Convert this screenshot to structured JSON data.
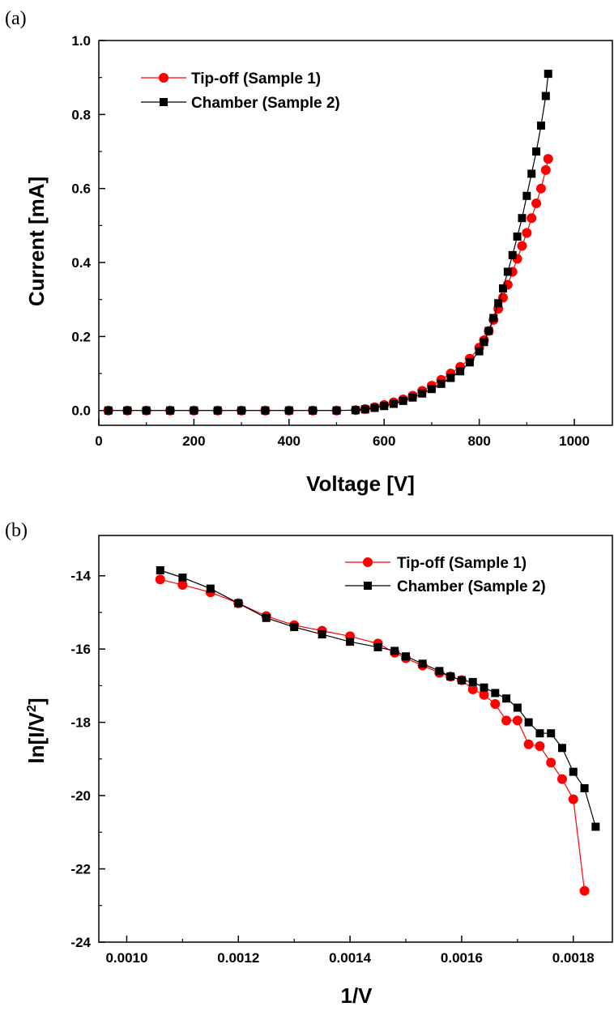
{
  "chart_data": [
    {
      "type": "scatter",
      "panel_label": "(a)",
      "xlabel": "Voltage [V]",
      "ylabel": "Current [mA]",
      "xlim": [
        0,
        1080
      ],
      "ylim": [
        -0.04,
        1.0
      ],
      "xticks": [
        0,
        200,
        400,
        600,
        800,
        1000
      ],
      "xtick_labels": [
        "0",
        "200",
        "400",
        "600",
        "800",
        "1000"
      ],
      "yticks": [
        0.0,
        0.2,
        0.4,
        0.6,
        0.8,
        1.0
      ],
      "ytick_labels": [
        "0.0",
        "0.2",
        "0.4",
        "0.6",
        "0.8",
        "1.0"
      ],
      "legend_position": "top-left",
      "series": [
        {
          "name": "Tip-off (Sample 1)",
          "color": "#ff0000",
          "marker": "circle",
          "x": [
            20,
            60,
            100,
            150,
            200,
            250,
            300,
            350,
            400,
            450,
            500,
            540,
            560,
            580,
            600,
            620,
            640,
            660,
            680,
            700,
            720,
            740,
            760,
            780,
            800,
            810,
            820,
            830,
            840,
            850,
            860,
            870,
            880,
            890,
            900,
            910,
            920,
            930,
            940,
            945
          ],
          "y": [
            0.0,
            0.0,
            0.0,
            0.0,
            0.0,
            0.0,
            0.0,
            0.0,
            0.0,
            0.0,
            0.0,
            0.001,
            0.004,
            0.009,
            0.015,
            0.022,
            0.03,
            0.04,
            0.053,
            0.067,
            0.083,
            0.1,
            0.118,
            0.14,
            0.17,
            0.19,
            0.215,
            0.245,
            0.275,
            0.305,
            0.34,
            0.375,
            0.41,
            0.445,
            0.48,
            0.52,
            0.56,
            0.6,
            0.65,
            0.68
          ]
        },
        {
          "name": "Chamber (Sample 2)",
          "color": "#000000",
          "marker": "square",
          "x": [
            20,
            60,
            100,
            150,
            200,
            250,
            300,
            350,
            400,
            450,
            500,
            540,
            560,
            580,
            600,
            620,
            640,
            660,
            680,
            700,
            720,
            740,
            760,
            780,
            800,
            810,
            820,
            830,
            840,
            850,
            860,
            870,
            880,
            890,
            900,
            910,
            920,
            930,
            940,
            945
          ],
          "y": [
            0.0,
            0.0,
            0.0,
            0.0,
            0.0,
            0.0,
            0.0,
            0.0,
            0.0,
            0.0,
            0.0,
            0.001,
            0.003,
            0.007,
            0.012,
            0.018,
            0.026,
            0.035,
            0.046,
            0.058,
            0.072,
            0.088,
            0.106,
            0.13,
            0.16,
            0.185,
            0.215,
            0.25,
            0.29,
            0.33,
            0.375,
            0.42,
            0.47,
            0.52,
            0.58,
            0.64,
            0.7,
            0.77,
            0.85,
            0.91
          ]
        }
      ]
    },
    {
      "type": "scatter",
      "panel_label": "(b)",
      "xlabel": "1/V",
      "ylabel": "ln[I/V",
      "ylabel_superscript": "2",
      "ylabel_suffix": "]",
      "xlim": [
        0.00095,
        0.00187
      ],
      "ylim": [
        -24,
        -12.9
      ],
      "xticks": [
        0.001,
        0.0012,
        0.0014,
        0.0016,
        0.0018
      ],
      "xtick_labels": [
        "0.0010",
        "0.0012",
        "0.0014",
        "0.0016",
        "0.0018"
      ],
      "yticks": [
        -24,
        -22,
        -20,
        -18,
        -16,
        -14
      ],
      "ytick_labels": [
        "-24",
        "-22",
        "-20",
        "-18",
        "-16",
        "-14"
      ],
      "legend_position": "top-right",
      "series": [
        {
          "name": "Tip-off (Sample 1)",
          "color": "#ff0000",
          "marker": "circle",
          "x": [
            0.00106,
            0.0011,
            0.00115,
            0.0012,
            0.00125,
            0.0013,
            0.00135,
            0.0014,
            0.00145,
            0.00148,
            0.0015,
            0.00153,
            0.00156,
            0.00158,
            0.0016,
            0.00162,
            0.00164,
            0.00166,
            0.00168,
            0.0017,
            0.00172,
            0.00174,
            0.00176,
            0.00178,
            0.0018,
            0.00182
          ],
          "y": [
            -14.1,
            -14.25,
            -14.45,
            -14.75,
            -15.1,
            -15.35,
            -15.5,
            -15.65,
            -15.85,
            -16.1,
            -16.25,
            -16.45,
            -16.65,
            -16.75,
            -16.85,
            -17.1,
            -17.25,
            -17.5,
            -17.95,
            -17.95,
            -18.6,
            -18.65,
            -19.1,
            -19.55,
            -20.1,
            -22.6
          ]
        },
        {
          "name": "Chamber (Sample 2)",
          "color": "#000000",
          "marker": "square",
          "x": [
            0.00106,
            0.0011,
            0.00115,
            0.0012,
            0.00125,
            0.0013,
            0.00135,
            0.0014,
            0.00145,
            0.00148,
            0.0015,
            0.00153,
            0.00156,
            0.00158,
            0.0016,
            0.00162,
            0.00164,
            0.00166,
            0.00168,
            0.0017,
            0.00172,
            0.00174,
            0.00176,
            0.00178,
            0.0018,
            0.00182,
            0.00184
          ],
          "y": [
            -13.85,
            -14.05,
            -14.35,
            -14.75,
            -15.15,
            -15.4,
            -15.6,
            -15.8,
            -15.95,
            -16.05,
            -16.2,
            -16.4,
            -16.6,
            -16.75,
            -16.85,
            -16.9,
            -17.05,
            -17.2,
            -17.35,
            -17.6,
            -18.0,
            -18.3,
            -18.3,
            -18.7,
            -19.35,
            -19.8,
            -20.85
          ]
        }
      ]
    }
  ]
}
